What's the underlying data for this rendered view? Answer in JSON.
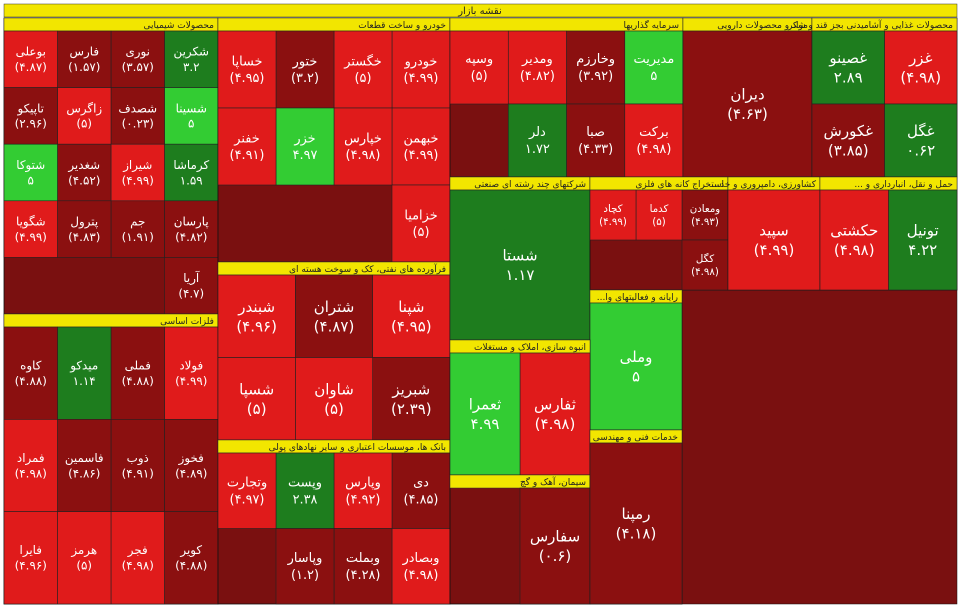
{
  "chart_data": {
    "type": "treemap",
    "title": "نقشه بازار",
    "sectors": [
      {
        "name": "محصولات شیمیایی",
        "tiles": [
          {
            "name": "شکرین",
            "value": 3.2,
            "value_label": "۳.۲",
            "color": "#1e7d1e"
          },
          {
            "name": "نوری",
            "value": -3.57,
            "value_label": "(۳.۵۷)",
            "color": "#8b1010"
          },
          {
            "name": "فارس",
            "value": -1.57,
            "value_label": "(۱.۵۷)",
            "color": "#8b1010"
          },
          {
            "name": "بوعلی",
            "value": -4.87,
            "value_label": "(۴.۸۷)",
            "color": "#e01b1b"
          },
          {
            "name": "شسینا",
            "value": 5,
            "value_label": "۵",
            "color": "#33cc33"
          },
          {
            "name": "شصدف",
            "value": -0.23,
            "value_label": "(۰.۲۳)",
            "color": "#8b1010"
          },
          {
            "name": "زاگرس",
            "value": -5,
            "value_label": "(۵)",
            "color": "#e01b1b"
          },
          {
            "name": "تاپیکو",
            "value": -2.96,
            "value_label": "(۲.۹۶)",
            "color": "#8b1010"
          },
          {
            "name": "کرماشا",
            "value": 1.59,
            "value_label": "۱.۵۹",
            "color": "#1e7d1e"
          },
          {
            "name": "شیراز",
            "value": -4.99,
            "value_label": "(۴.۹۹)",
            "color": "#e01b1b"
          },
          {
            "name": "شغدیر",
            "value": -4.52,
            "value_label": "(۴.۵۲)",
            "color": "#8b1010"
          },
          {
            "name": "شتوکا",
            "value": 5,
            "value_label": "۵",
            "color": "#33cc33"
          },
          {
            "name": "پارسان",
            "value": -4.82,
            "value_label": "(۴.۸۲)",
            "color": "#8b1010"
          },
          {
            "name": "جم",
            "value": -1.91,
            "value_label": "(۱.۹۱)",
            "color": "#8b1010"
          },
          {
            "name": "پترول",
            "value": -4.83,
            "value_label": "(۴.۸۳)",
            "color": "#8b1010"
          },
          {
            "name": "شگویا",
            "value": -4.99,
            "value_label": "(۴.۹۹)",
            "color": "#e01b1b"
          },
          {
            "name": "آریا",
            "value": -4.7,
            "value_label": "(۴.۷)",
            "color": "#8b1010"
          }
        ]
      },
      {
        "name": "فلزات اساسی",
        "tiles": [
          {
            "name": "فولاد",
            "value": -4.99,
            "value_label": "(۴.۹۹)",
            "color": "#e01b1b"
          },
          {
            "name": "فملی",
            "value": -4.88,
            "value_label": "(۴.۸۸)",
            "color": "#8b1010"
          },
          {
            "name": "میدکو",
            "value": 1.14,
            "value_label": "۱.۱۴",
            "color": "#1e7d1e"
          },
          {
            "name": "کاوه",
            "value": -4.88,
            "value_label": "(۴.۸۸)",
            "color": "#8b1010"
          },
          {
            "name": "فخوز",
            "value": -4.89,
            "value_label": "(۴.۸۹)",
            "color": "#8b1010"
          },
          {
            "name": "ذوب",
            "value": -4.91,
            "value_label": "(۴.۹۱)",
            "color": "#8b1010"
          },
          {
            "name": "فاسمین",
            "value": -4.86,
            "value_label": "(۴.۸۶)",
            "color": "#8b1010"
          },
          {
            "name": "فمراد",
            "value": -4.98,
            "value_label": "(۴.۹۸)",
            "color": "#e01b1b"
          },
          {
            "name": "کویر",
            "value": -4.88,
            "value_label": "(۴.۸۸)",
            "color": "#8b1010"
          },
          {
            "name": "فجر",
            "value": -4.98,
            "value_label": "(۴.۹۸)",
            "color": "#e01b1b"
          },
          {
            "name": "هرمز",
            "value": -5,
            "value_label": "(۵)",
            "color": "#e01b1b"
          },
          {
            "name": "فایرا",
            "value": -4.96,
            "value_label": "(۴.۹۶)",
            "color": "#e01b1b"
          }
        ]
      },
      {
        "name": "خودرو و ساخت قطعات",
        "tiles": [
          {
            "name": "خودرو",
            "value": -4.99,
            "value_label": "(۴.۹۹)",
            "color": "#e01b1b"
          },
          {
            "name": "خگستر",
            "value": -5,
            "value_label": "(۵)",
            "color": "#e01b1b"
          },
          {
            "name": "ختور",
            "value": -3.2,
            "value_label": "(۳.۲)",
            "color": "#8b1010"
          },
          {
            "name": "خساپا",
            "value": -4.95,
            "value_label": "(۴.۹۵)",
            "color": "#e01b1b"
          },
          {
            "name": "خبهمن",
            "value": -4.99,
            "value_label": "(۴.۹۹)",
            "color": "#e01b1b"
          },
          {
            "name": "خپارس",
            "value": -4.98,
            "value_label": "(۴.۹۸)",
            "color": "#e01b1b"
          },
          {
            "name": "خزر",
            "value": 4.97,
            "value_label": "۴.۹۷",
            "color": "#33cc33"
          },
          {
            "name": "خفنر",
            "value": -4.91,
            "value_label": "(۴.۹۱)",
            "color": "#e01b1b"
          },
          {
            "name": "خزامیا",
            "value": -5,
            "value_label": "(۵)",
            "color": "#e01b1b"
          }
        ]
      },
      {
        "name": "فرآورده های نفتی، کک و سوخت هسته ای",
        "tiles": [
          {
            "name": "شپنا",
            "value": -4.95,
            "value_label": "(۴.۹۵)",
            "color": "#e01b1b"
          },
          {
            "name": "شتران",
            "value": -4.87,
            "value_label": "(۴.۸۷)",
            "color": "#8b1010"
          },
          {
            "name": "شبندر",
            "value": -4.96,
            "value_label": "(۴.۹۶)",
            "color": "#e01b1b"
          },
          {
            "name": "شبریز",
            "value": -2.39,
            "value_label": "(۲.۳۹)",
            "color": "#8b1010"
          },
          {
            "name": "شاوان",
            "value": -5,
            "value_label": "(۵)",
            "color": "#e01b1b"
          },
          {
            "name": "شسپا",
            "value": -5,
            "value_label": "(۵)",
            "color": "#e01b1b"
          }
        ]
      },
      {
        "name": "بانک ها، موسسات اعتباری و سایر نهادهای پولی",
        "tiles": [
          {
            "name": "دی",
            "value": -4.85,
            "value_label": "(۴.۸۵)",
            "color": "#8b1010"
          },
          {
            "name": "وپارس",
            "value": -4.92,
            "value_label": "(۴.۹۲)",
            "color": "#e01b1b"
          },
          {
            "name": "وپست",
            "value": 2.38,
            "value_label": "۲.۳۸",
            "color": "#1e7d1e"
          },
          {
            "name": "وتجارت",
            "value": -4.97,
            "value_label": "(۴.۹۷)",
            "color": "#e01b1b"
          },
          {
            "name": "وبصادر",
            "value": -4.98,
            "value_label": "(۴.۹۸)",
            "color": "#e01b1b"
          },
          {
            "name": "وبملت",
            "value": -4.28,
            "value_label": "(۴.۲۸)",
            "color": "#8b1010"
          },
          {
            "name": "وپاسار",
            "value": -1.2,
            "value_label": "(۱.۲)",
            "color": "#8b1010"
          }
        ]
      },
      {
        "name": "سرمایه گذاریها",
        "tiles": [
          {
            "name": "مدیریت",
            "value": 5,
            "value_label": "۵",
            "color": "#33cc33"
          },
          {
            "name": "وخارزم",
            "value": -3.92,
            "value_label": "(۳.۹۲)",
            "color": "#8b1010"
          },
          {
            "name": "ومدیر",
            "value": -4.82,
            "value_label": "(۴.۸۲)",
            "color": "#e01b1b"
          },
          {
            "name": "وسپه",
            "value": -5,
            "value_label": "(۵)",
            "color": "#e01b1b"
          },
          {
            "name": "برکت",
            "value": -4.98,
            "value_label": "(۴.۹۸)",
            "color": "#e01b1b"
          },
          {
            "name": "صبا",
            "value": -4.33,
            "value_label": "(۴.۳۳)",
            "color": "#8b1010"
          },
          {
            "name": "دلر",
            "value": 1.72,
            "value_label": "۱.۷۲",
            "color": "#1e7d1e"
          }
        ]
      },
      {
        "name": "مواد و محصولات دارویی",
        "tiles": [
          {
            "name": "دیران",
            "value": -4.63,
            "value_label": "(۴.۶۳)",
            "color": "#8b1010"
          }
        ]
      },
      {
        "name": "محصولات غذایی و آشامیدنی بجز قند و شکر",
        "tiles": [
          {
            "name": "غزر",
            "value": -4.98,
            "value_label": "(۴.۹۸)",
            "color": "#e01b1b"
          },
          {
            "name": "غصینو",
            "value": 2.89,
            "value_label": "۲.۸۹",
            "color": "#1e7d1e"
          },
          {
            "name": "غگل",
            "value": 0.62,
            "value_label": "۰.۶۲",
            "color": "#1e7d1e"
          },
          {
            "name": "غکورش",
            "value": -3.85,
            "value_label": "(۳.۸۵)",
            "color": "#8b1010"
          }
        ]
      },
      {
        "name": "شرکتهای چند رشته ای صنعتی",
        "tiles": [
          {
            "name": "شستا",
            "value": 1.17,
            "value_label": "۱.۱۷",
            "color": "#1e7d1e"
          }
        ]
      },
      {
        "name": "استخراج کانه های فلزی",
        "tiles": [
          {
            "name": "ومعادن",
            "value": -4.93,
            "value_label": "(۴.۹۳)",
            "color": "#8b1010"
          },
          {
            "name": "کدما",
            "value": -5,
            "value_label": "(۵)",
            "color": "#e01b1b"
          },
          {
            "name": "کچاد",
            "value": -4.99,
            "value_label": "(۴.۹۹)",
            "color": "#e01b1b"
          },
          {
            "name": "کگل",
            "value": -4.98,
            "value_label": "(۴.۹۸)",
            "color": "#8b1010"
          }
        ]
      },
      {
        "name": "کشاورزی، دامپروری و خد...",
        "tiles": [
          {
            "name": "سپید",
            "value": -4.99,
            "value_label": "(۴.۹۹)",
            "color": "#e01b1b"
          }
        ]
      },
      {
        "name": "حمل و نقل، انبارداری و ...",
        "tiles": [
          {
            "name": "تونیل",
            "value": 4.22,
            "value_label": "۴.۲۲",
            "color": "#1e7d1e"
          },
          {
            "name": "حکشتی",
            "value": -4.98,
            "value_label": "(۴.۹۸)",
            "color": "#e01b1b"
          }
        ]
      },
      {
        "name": "رایانه و فعالیتهای وا...",
        "tiles": [
          {
            "name": "وملی",
            "value": 5,
            "value_label": "۵",
            "color": "#33cc33"
          }
        ]
      },
      {
        "name": "انبوه سازی، املاک و مستغلات",
        "tiles": [
          {
            "name": "ثفارس",
            "value": -4.98,
            "value_label": "(۴.۹۸)",
            "color": "#e01b1b"
          },
          {
            "name": "ثعمرا",
            "value": 4.99,
            "value_label": "۴.۹۹",
            "color": "#33cc33"
          }
        ]
      },
      {
        "name": "سیمان، آهک و گچ",
        "tiles": [
          {
            "name": "سفارس",
            "value": -0.6,
            "value_label": "(۰.۶)",
            "color": "#8b1010"
          }
        ]
      },
      {
        "name": "خدمات فنی و مهندسی",
        "tiles": [
          {
            "name": "رمپنا",
            "value": -4.18,
            "value_label": "(۴.۱۸)",
            "color": "#8b1010"
          }
        ]
      }
    ]
  }
}
